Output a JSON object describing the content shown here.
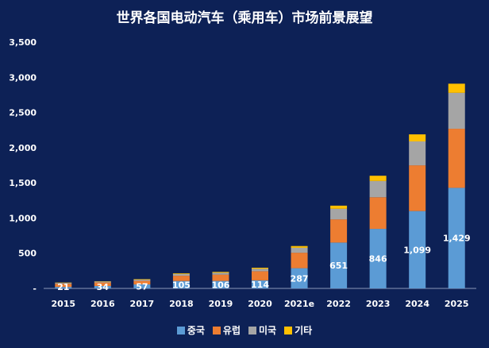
{
  "chart_data": {
    "type": "bar",
    "stacked": true,
    "title": "世界各国电动汽车（乘用车）市场前景展望",
    "xlabel": "",
    "ylabel": "",
    "categories": [
      "2015",
      "2016",
      "2017",
      "2018",
      "2019",
      "2020",
      "2021e",
      "2022",
      "2023",
      "2024",
      "2025"
    ],
    "ylim": [
      0,
      3500
    ],
    "yticks": [
      0,
      500,
      1000,
      1500,
      2000,
      2500,
      3000,
      3500
    ],
    "ytick_labels": [
      "-",
      "500",
      "1,000",
      "1,500",
      "2,000",
      "2,500",
      "3,000",
      "3,500"
    ],
    "grid": false,
    "legend_position": "bottom",
    "series": [
      {
        "name": "중국",
        "color": "#5b9bd5",
        "values": [
          21,
          34,
          57,
          105,
          106,
          114,
          287,
          651,
          846,
          1099,
          1429
        ]
      },
      {
        "name": "유럽",
        "color": "#ed7d31",
        "values": [
          45,
          50,
          50,
          75,
          90,
          130,
          220,
          330,
          450,
          650,
          840
        ]
      },
      {
        "name": "미국",
        "color": "#a5a5a5",
        "values": [
          12,
          13,
          18,
          25,
          27,
          35,
          70,
          150,
          230,
          340,
          510
        ]
      },
      {
        "name": "기타",
        "color": "#ffc000",
        "values": [
          5,
          5,
          7,
          10,
          12,
          15,
          25,
          45,
          75,
          100,
          130
        ]
      }
    ],
    "data_labels": [
      "21",
      "34",
      "57",
      "105",
      "106",
      "114",
      "287",
      "651",
      "846",
      "1,099",
      "1,429"
    ]
  }
}
